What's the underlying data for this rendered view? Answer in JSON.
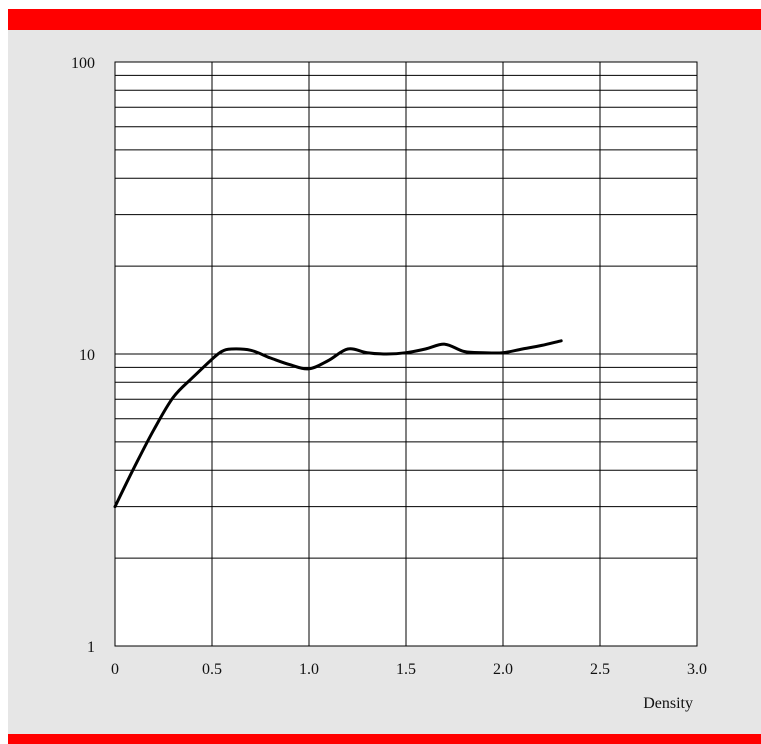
{
  "colors": {
    "banner": "#ff0000",
    "panel_background": "#e6e6e6",
    "plot_background": "#ffffff",
    "grid": "#000000",
    "line": "#000000"
  },
  "chart_data": {
    "type": "line",
    "title": "",
    "xlabel": "Density",
    "ylabel": "",
    "xscale": "linear",
    "yscale": "log",
    "xlim": [
      0,
      3.0
    ],
    "ylim": [
      1,
      100
    ],
    "grid": true,
    "legend": "none",
    "x_ticks": [
      "0",
      "0.5",
      "1.0",
      "1.5",
      "2.0",
      "2.5",
      "3.0"
    ],
    "y_ticks": [
      "1",
      "10",
      "100"
    ],
    "series": [
      {
        "x": [
          0.0,
          0.1,
          0.2,
          0.3,
          0.4,
          0.5,
          0.55,
          0.6,
          0.7,
          0.8,
          0.9,
          1.0,
          1.1,
          1.2,
          1.3,
          1.4,
          1.5,
          1.6,
          1.7,
          1.8,
          1.9,
          2.0,
          2.1,
          2.2,
          2.3
        ],
        "y": [
          3.0,
          4.1,
          5.5,
          7.1,
          8.3,
          9.6,
          10.2,
          10.4,
          10.3,
          9.7,
          9.2,
          8.9,
          9.5,
          10.4,
          10.1,
          10.0,
          10.1,
          10.4,
          10.8,
          10.2,
          10.1,
          10.1,
          10.4,
          10.7,
          11.1
        ]
      }
    ]
  }
}
